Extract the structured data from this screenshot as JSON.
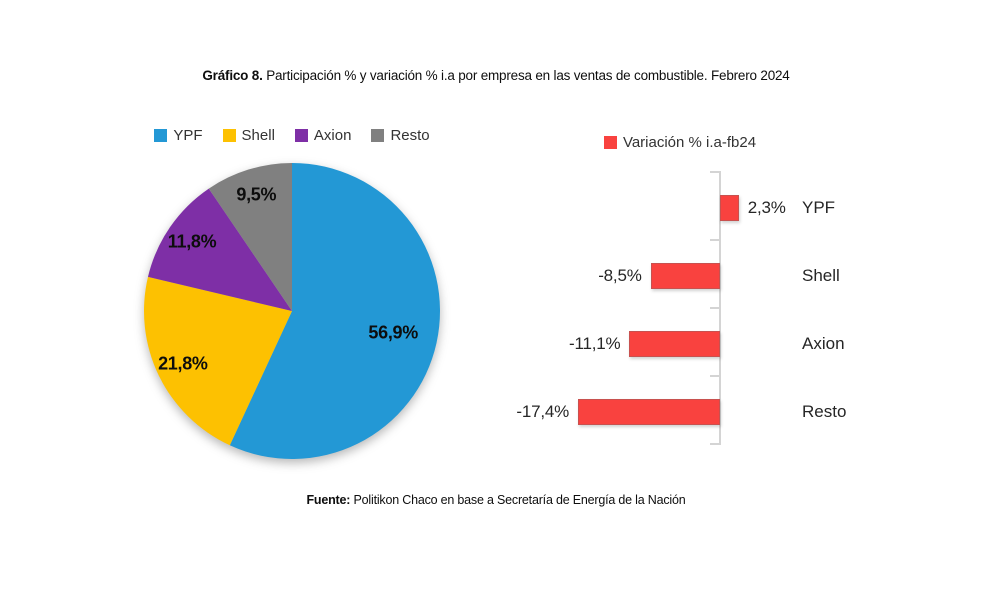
{
  "header": {
    "title_prefix": "Gráfico 8.",
    "title_rest": " Participación % y variación % i.a por empresa en las ventas de combustible. Febrero 2024"
  },
  "footer": {
    "source_label": "Fuente:",
    "source_text": " Politikon Chaco en base a Secretaría de Energía de la Nación"
  },
  "chart_data": [
    {
      "type": "pie",
      "categories": [
        "YPF",
        "Shell",
        "Axion",
        "Resto"
      ],
      "values": [
        56.9,
        21.8,
        11.8,
        9.5
      ],
      "labels_display": [
        "56,9%",
        "21,8%",
        "11,8%",
        "9,5%"
      ],
      "colors": [
        "#2398D5",
        "#FDC101",
        "#7E2FA6",
        "#808080"
      ],
      "start_angle": "top",
      "direction": "clockwise",
      "legend_position": "top"
    },
    {
      "type": "bar",
      "orientation": "horizontal",
      "categories": [
        "YPF",
        "Shell",
        "Axion",
        "Resto"
      ],
      "values": [
        2.3,
        -8.5,
        -11.1,
        -17.4
      ],
      "labels_display": [
        "2,3%",
        "-8,5%",
        "-11,1%",
        "-17,4%"
      ],
      "color": "#F9423F",
      "legend": "Variación % i.a-fb24",
      "axis": {
        "baseline": 0,
        "line_color": "#d4d4d4",
        "gridlines": false
      },
      "legend_position": "top"
    }
  ]
}
